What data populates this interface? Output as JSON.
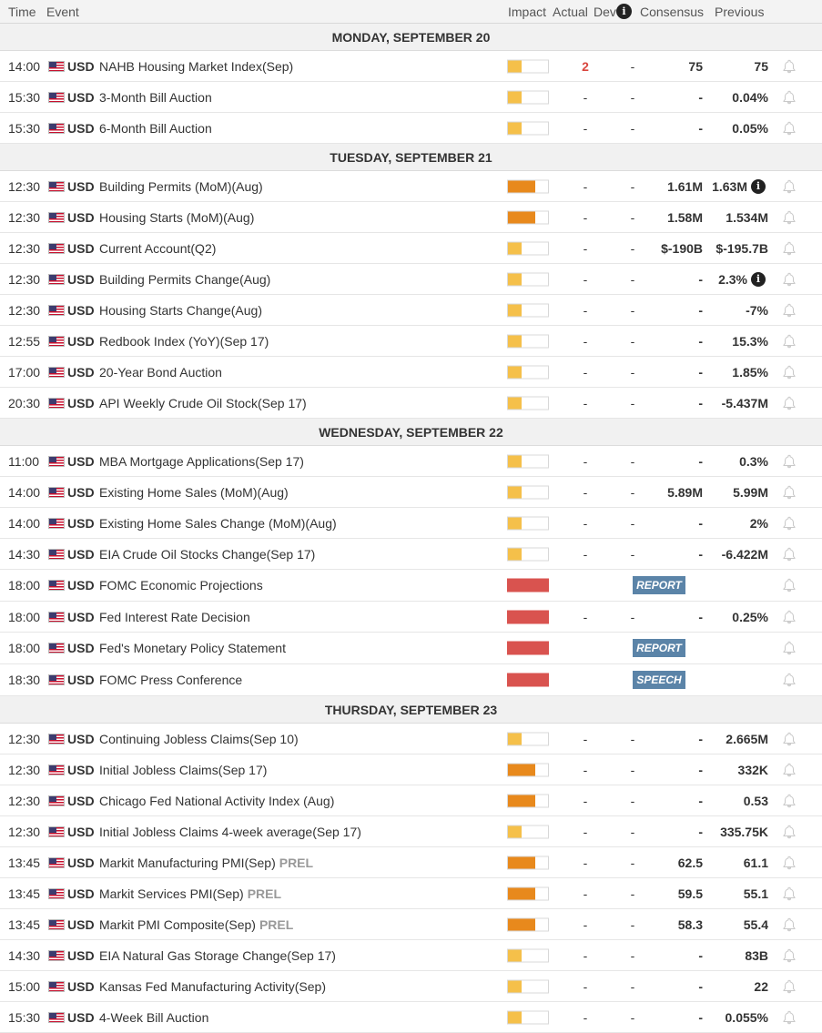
{
  "header": {
    "time": "Time",
    "event": "Event",
    "impact": "Impact",
    "actual": "Actual",
    "dev": "Dev",
    "consensus": "Consensus",
    "previous": "Previous",
    "info_icon": "info-icon"
  },
  "colors": {
    "low_impact": "#f5c04a",
    "medium_impact": "#e8891c",
    "high_impact": "#d9534f",
    "badge": "#5b84a8",
    "actual_highlight": "#d9463e"
  },
  "days": [
    {
      "title": "MONDAY, SEPTEMBER 20",
      "events": [
        {
          "time": "14:00",
          "currency": "USD",
          "event": "NAHB Housing Market Index(Sep)",
          "impact": "low",
          "actual": "2",
          "actual_highlight": true,
          "dev": "-",
          "consensus": "75",
          "previous": "75"
        },
        {
          "time": "15:30",
          "currency": "USD",
          "event": "3-Month Bill Auction",
          "impact": "low",
          "actual": "-",
          "dev": "-",
          "consensus": "-",
          "previous": "0.04%"
        },
        {
          "time": "15:30",
          "currency": "USD",
          "event": "6-Month Bill Auction",
          "impact": "low",
          "actual": "-",
          "dev": "-",
          "consensus": "-",
          "previous": "0.05%"
        }
      ]
    },
    {
      "title": "TUESDAY, SEPTEMBER 21",
      "events": [
        {
          "time": "12:30",
          "currency": "USD",
          "event": "Building Permits (MoM)(Aug)",
          "impact": "medium",
          "actual": "-",
          "dev": "-",
          "consensus": "1.61M",
          "previous": "1.63M",
          "info": true
        },
        {
          "time": "12:30",
          "currency": "USD",
          "event": "Housing Starts (MoM)(Aug)",
          "impact": "medium",
          "actual": "-",
          "dev": "-",
          "consensus": "1.58M",
          "previous": "1.534M"
        },
        {
          "time": "12:30",
          "currency": "USD",
          "event": "Current Account(Q2)",
          "impact": "low",
          "actual": "-",
          "dev": "-",
          "consensus": "$-190B",
          "previous": "$-195.7B"
        },
        {
          "time": "12:30",
          "currency": "USD",
          "event": "Building Permits Change(Aug)",
          "impact": "low",
          "actual": "-",
          "dev": "-",
          "consensus": "-",
          "previous": "2.3%",
          "info": true
        },
        {
          "time": "12:30",
          "currency": "USD",
          "event": "Housing Starts Change(Aug)",
          "impact": "low",
          "actual": "-",
          "dev": "-",
          "consensus": "-",
          "previous": "-7%"
        },
        {
          "time": "12:55",
          "currency": "USD",
          "event": "Redbook Index (YoY)(Sep 17)",
          "impact": "low",
          "actual": "-",
          "dev": "-",
          "consensus": "-",
          "previous": "15.3%"
        },
        {
          "time": "17:00",
          "currency": "USD",
          "event": "20-Year Bond Auction",
          "impact": "low",
          "actual": "-",
          "dev": "-",
          "consensus": "-",
          "previous": "1.85%"
        },
        {
          "time": "20:30",
          "currency": "USD",
          "event": "API Weekly Crude Oil Stock(Sep 17)",
          "impact": "low",
          "actual": "-",
          "dev": "-",
          "consensus": "-",
          "previous": "-5.437M"
        }
      ]
    },
    {
      "title": "WEDNESDAY, SEPTEMBER 22",
      "events": [
        {
          "time": "11:00",
          "currency": "USD",
          "event": "MBA Mortgage Applications(Sep 17)",
          "impact": "low",
          "actual": "-",
          "dev": "-",
          "consensus": "-",
          "previous": "0.3%"
        },
        {
          "time": "14:00",
          "currency": "USD",
          "event": "Existing Home Sales (MoM)(Aug)",
          "impact": "low",
          "actual": "-",
          "dev": "-",
          "consensus": "5.89M",
          "previous": "5.99M"
        },
        {
          "time": "14:00",
          "currency": "USD",
          "event": "Existing Home Sales Change (MoM)(Aug)",
          "impact": "low",
          "actual": "-",
          "dev": "-",
          "consensus": "-",
          "previous": "2%"
        },
        {
          "time": "14:30",
          "currency": "USD",
          "event": "EIA Crude Oil Stocks Change(Sep 17)",
          "impact": "low",
          "actual": "-",
          "dev": "-",
          "consensus": "-",
          "previous": "-6.422M"
        },
        {
          "time": "18:00",
          "currency": "USD",
          "event": "FOMC Economic Projections",
          "impact": "high",
          "badge": "REPORT"
        },
        {
          "time": "18:00",
          "currency": "USD",
          "event": "Fed Interest Rate Decision",
          "impact": "high",
          "actual": "-",
          "dev": "-",
          "consensus": "-",
          "previous": "0.25%"
        },
        {
          "time": "18:00",
          "currency": "USD",
          "event": "Fed's Monetary Policy Statement",
          "impact": "high",
          "badge": "REPORT"
        },
        {
          "time": "18:30",
          "currency": "USD",
          "event": "FOMC Press Conference",
          "impact": "high",
          "badge": "SPEECH"
        }
      ]
    },
    {
      "title": "THURSDAY, SEPTEMBER 23",
      "events": [
        {
          "time": "12:30",
          "currency": "USD",
          "event": "Continuing Jobless Claims(Sep 10)",
          "impact": "low",
          "actual": "-",
          "dev": "-",
          "consensus": "-",
          "previous": "2.665M"
        },
        {
          "time": "12:30",
          "currency": "USD",
          "event": "Initial Jobless Claims(Sep 17)",
          "impact": "medium",
          "actual": "-",
          "dev": "-",
          "consensus": "-",
          "previous": "332K"
        },
        {
          "time": "12:30",
          "currency": "USD",
          "event": "Chicago Fed National Activity Index (Aug)",
          "impact": "medium",
          "actual": "-",
          "dev": "-",
          "consensus": "-",
          "previous": "0.53"
        },
        {
          "time": "12:30",
          "currency": "USD",
          "event": "Initial Jobless Claims 4-week average(Sep 17)",
          "impact": "low",
          "actual": "-",
          "dev": "-",
          "consensus": "-",
          "previous": "335.75K"
        },
        {
          "time": "13:45",
          "currency": "USD",
          "event": "Markit Manufacturing PMI(Sep)",
          "tag": "PREL",
          "impact": "medium",
          "actual": "-",
          "dev": "-",
          "consensus": "62.5",
          "previous": "61.1"
        },
        {
          "time": "13:45",
          "currency": "USD",
          "event": "Markit Services PMI(Sep)",
          "tag": "PREL",
          "impact": "medium",
          "actual": "-",
          "dev": "-",
          "consensus": "59.5",
          "previous": "55.1"
        },
        {
          "time": "13:45",
          "currency": "USD",
          "event": "Markit PMI Composite(Sep)",
          "tag": "PREL",
          "impact": "medium",
          "actual": "-",
          "dev": "-",
          "consensus": "58.3",
          "previous": "55.4"
        },
        {
          "time": "14:30",
          "currency": "USD",
          "event": "EIA Natural Gas Storage Change(Sep 17)",
          "impact": "low",
          "actual": "-",
          "dev": "-",
          "consensus": "-",
          "previous": "83B"
        },
        {
          "time": "15:00",
          "currency": "USD",
          "event": "Kansas Fed Manufacturing Activity(Sep)",
          "impact": "low",
          "actual": "-",
          "dev": "-",
          "consensus": "-",
          "previous": "22"
        },
        {
          "time": "15:30",
          "currency": "USD",
          "event": "4-Week Bill Auction",
          "impact": "low",
          "actual": "-",
          "dev": "-",
          "consensus": "-",
          "previous": "0.055%"
        }
      ]
    }
  ]
}
